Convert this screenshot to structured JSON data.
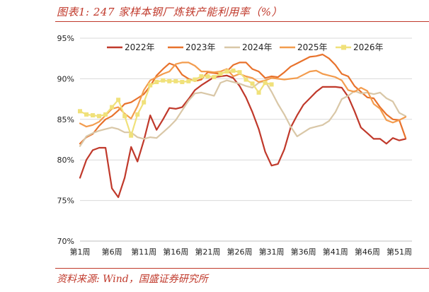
{
  "header": {
    "title": "图表1:  247 家样本钢厂炼铁产能利用率（%）"
  },
  "footer": {
    "source": "资料来源:  Wind，国盛证券研究所"
  },
  "colors": {
    "accent": "#c0392b"
  },
  "chart_data": {
    "type": "line",
    "title": "",
    "xlabel": "",
    "ylabel": "",
    "ylim": [
      70,
      95
    ],
    "y_ticks": [
      70,
      75,
      80,
      85,
      90,
      95
    ],
    "y_tick_labels": [
      "70%",
      "75%",
      "80%",
      "85%",
      "90%",
      "95%"
    ],
    "x_range": [
      1,
      53
    ],
    "x_ticks": [
      1,
      6,
      11,
      16,
      21,
      26,
      31,
      36,
      41,
      46,
      51
    ],
    "x_tick_labels": [
      "第1周",
      "第6周",
      "第11周",
      "第16周",
      "第21周",
      "第26周",
      "第31周",
      "第36周",
      "第41周",
      "第46周",
      "第51周"
    ],
    "grid": "horizontal",
    "legend_position": "top",
    "series": [
      {
        "name": "2022年",
        "color": "#c0392b",
        "marker": "none",
        "x": [
          1,
          2,
          3,
          4,
          5,
          6,
          7,
          8,
          9,
          10,
          11,
          12,
          13,
          14,
          15,
          16,
          17,
          18,
          19,
          20,
          21,
          22,
          23,
          24,
          25,
          26,
          27,
          28,
          29,
          30,
          31,
          32,
          33,
          34,
          35,
          36,
          37,
          38,
          39,
          40,
          41,
          42,
          43,
          44,
          45,
          46,
          47,
          48,
          49,
          50,
          51,
          52
        ],
        "values": [
          77.8,
          80.0,
          81.2,
          81.5,
          81.5,
          76.5,
          75.4,
          77.8,
          81.6,
          79.8,
          82.4,
          85.5,
          83.7,
          85.0,
          86.4,
          86.3,
          86.5,
          87.5,
          88.6,
          89.2,
          89.7,
          90.2,
          90.3,
          90.4,
          90.1,
          89.1,
          87.7,
          85.9,
          83.8,
          81.0,
          79.3,
          79.5,
          81.3,
          84.0,
          85.5,
          86.8,
          87.6,
          88.4,
          89.0,
          89.0,
          89.0,
          88.9,
          87.8,
          86.0,
          84.0,
          83.3,
          82.6,
          82.6,
          82.0,
          82.7,
          82.4,
          82.6
        ]
      },
      {
        "name": "2023年",
        "color": "#e8722c",
        "marker": "none",
        "x": [
          1,
          2,
          3,
          4,
          5,
          6,
          7,
          8,
          9,
          10,
          11,
          12,
          13,
          14,
          15,
          16,
          17,
          18,
          19,
          20,
          21,
          22,
          23,
          24,
          25,
          26,
          27,
          28,
          29,
          30,
          31,
          32,
          33,
          34,
          35,
          36,
          37,
          38,
          39,
          40,
          41,
          42,
          43,
          44,
          45,
          46,
          47,
          48,
          49,
          50,
          51,
          52
        ],
        "values": [
          82.0,
          82.8,
          83.2,
          84.2,
          85.0,
          85.4,
          86.1,
          86.9,
          87.1,
          87.6,
          88.1,
          89.1,
          90.4,
          91.2,
          91.9,
          91.6,
          90.5,
          90.0,
          89.7,
          89.9,
          90.8,
          90.7,
          90.6,
          90.9,
          91.7,
          92.0,
          92.0,
          91.2,
          90.9,
          90.1,
          90.3,
          90.2,
          90.8,
          91.5,
          91.9,
          92.3,
          92.7,
          92.8,
          93.0,
          92.5,
          91.7,
          90.6,
          90.3,
          89.1,
          88.4,
          87.7,
          87.6,
          86.5,
          85.6,
          85.0,
          84.9,
          82.7
        ]
      },
      {
        "name": "2024年",
        "color": "#d9c7a7",
        "marker": "none",
        "x": [
          1,
          2,
          3,
          4,
          5,
          6,
          7,
          8,
          9,
          10,
          11,
          12,
          13,
          14,
          15,
          16,
          17,
          18,
          19,
          20,
          21,
          22,
          23,
          24,
          25,
          26,
          27,
          28,
          29,
          30,
          31,
          32,
          33,
          34,
          35,
          36,
          37,
          38,
          39,
          40,
          41,
          42,
          43,
          44,
          45,
          46,
          47,
          48,
          49,
          50,
          51,
          52
        ],
        "values": [
          81.7,
          82.9,
          83.3,
          83.6,
          83.8,
          84.0,
          83.8,
          83.4,
          83.4,
          82.8,
          82.6,
          82.8,
          82.7,
          83.4,
          84.1,
          84.9,
          86.1,
          87.3,
          88.2,
          88.3,
          88.1,
          87.9,
          89.5,
          89.8,
          89.6,
          89.4,
          89.1,
          88.9,
          89.5,
          89.7,
          88.4,
          86.9,
          85.6,
          84.1,
          82.9,
          83.4,
          83.9,
          84.1,
          84.3,
          84.8,
          85.9,
          87.5,
          87.9,
          88.5,
          88.2,
          88.3,
          88.1,
          88.3,
          87.6,
          87.2,
          85.8,
          85.4
        ]
      },
      {
        "name": "2025年",
        "color": "#f39c4e",
        "marker": "none",
        "x": [
          1,
          2,
          3,
          4,
          5,
          6,
          7,
          8,
          9,
          10,
          11,
          12,
          13,
          14,
          15,
          16,
          17,
          18,
          19,
          20,
          21,
          22,
          23,
          24,
          25,
          26,
          27,
          28,
          29,
          30,
          31,
          32,
          33,
          34,
          35,
          36,
          37,
          38,
          39,
          40,
          41,
          42,
          43,
          44,
          45,
          46,
          47,
          48,
          49,
          50,
          51,
          52
        ],
        "values": [
          84.5,
          84.1,
          84.3,
          84.7,
          85.5,
          86.3,
          86.5,
          85.7,
          85.1,
          86.6,
          88.6,
          89.8,
          90.2,
          90.6,
          90.9,
          91.8,
          92.0,
          92.0,
          91.6,
          90.9,
          90.9,
          90.8,
          90.9,
          91.2,
          90.3,
          90.6,
          90.3,
          90.1,
          89.6,
          89.8,
          90.1,
          90.0,
          89.9,
          90.0,
          90.1,
          90.5,
          90.9,
          91.0,
          90.6,
          90.4,
          90.2,
          89.8,
          88.6,
          88.4,
          88.9,
          88.5,
          86.9,
          86.3,
          84.9,
          84.6,
          84.9,
          85.3
        ]
      },
      {
        "name": "2026年",
        "color": "#f0e17a",
        "marker": "square",
        "x": [
          1,
          2,
          3,
          4,
          5,
          6,
          7,
          8,
          9,
          10,
          11,
          12,
          13,
          14,
          15,
          16,
          17,
          18,
          19,
          20,
          21,
          22,
          23,
          24,
          25,
          26,
          27,
          28,
          29,
          30,
          31
        ],
        "values": [
          86.0,
          85.6,
          85.5,
          85.4,
          85.6,
          86.5,
          87.4,
          85.4,
          83.0,
          85.6,
          87.1,
          89.2,
          89.6,
          89.8,
          89.7,
          89.7,
          89.6,
          89.7,
          89.9,
          90.3,
          90.3,
          90.2,
          90.6,
          90.9,
          91.0,
          90.8,
          89.9,
          89.4,
          88.3,
          89.5,
          89.3
        ]
      }
    ]
  }
}
